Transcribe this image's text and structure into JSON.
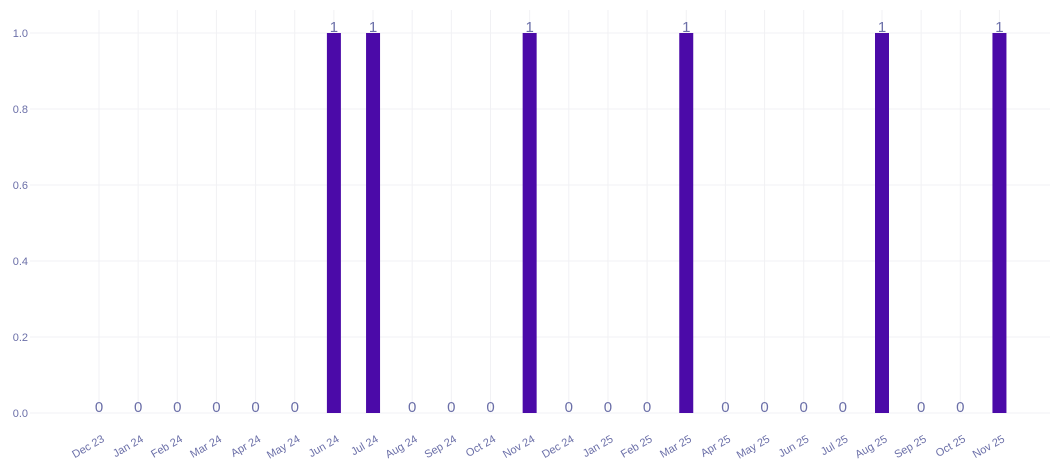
{
  "colors": {
    "bar": "#4b0aa8",
    "grid": "#f1f1f4",
    "text": "#6b6fa8"
  },
  "chart_data": {
    "type": "bar",
    "title": "",
    "xlabel": "",
    "ylabel": "",
    "grid": true,
    "legend": "none",
    "ylim": [
      0,
      1.05
    ],
    "yticks": [
      "0.0",
      "0.2",
      "0.4",
      "0.6",
      "0.8",
      "1.0"
    ],
    "categories": [
      "Dec 23",
      "Jan 24",
      "Feb 24",
      "Mar 24",
      "Apr 24",
      "May 24",
      "Jun 24",
      "Jul 24",
      "Aug 24",
      "Sep 24",
      "Oct 24",
      "Nov 24",
      "Dec 24",
      "Jan 25",
      "Feb 25",
      "Mar 25",
      "Apr 25",
      "May 25",
      "Jun 25",
      "Jul 25",
      "Aug 25",
      "Sep 25",
      "Oct 25",
      "Nov 25"
    ],
    "values": [
      0,
      0,
      0,
      0,
      0,
      0,
      1,
      1,
      0,
      0,
      0,
      1,
      0,
      0,
      0,
      1,
      0,
      0,
      0,
      0,
      1,
      0,
      0,
      1
    ],
    "data_labels": [
      "0",
      "0",
      "0",
      "0",
      "0",
      "0",
      "1",
      "1",
      "0",
      "0",
      "0",
      "1",
      "0",
      "0",
      "0",
      "1",
      "0",
      "0",
      "0",
      "0",
      "1",
      "0",
      "0",
      "1"
    ]
  }
}
